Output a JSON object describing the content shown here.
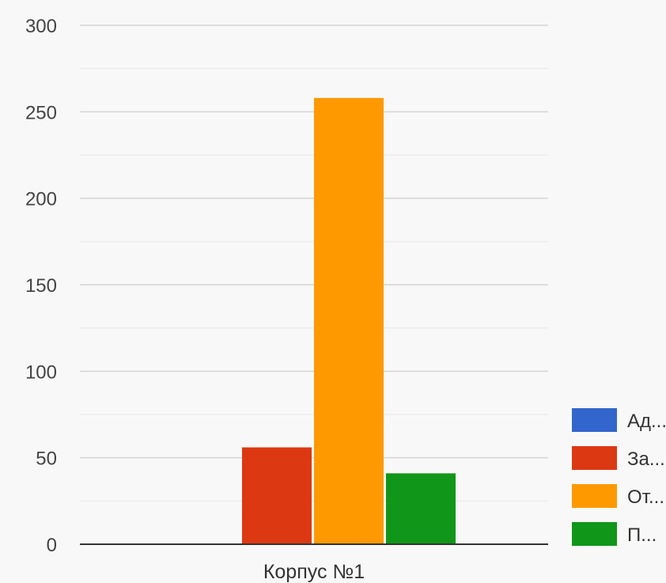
{
  "chart_data": {
    "type": "bar",
    "categories": [
      "Корпус №1"
    ],
    "series": [
      {
        "name": "Ад...",
        "color": "#3366cc",
        "values": [
          0
        ]
      },
      {
        "name": "За...",
        "color": "#dc3912",
        "values": [
          56
        ]
      },
      {
        "name": "От...",
        "color": "#ff9900",
        "values": [
          258
        ]
      },
      {
        "name": "П...",
        "color": "#109618",
        "values": [
          41
        ]
      }
    ],
    "ylim": [
      0,
      300
    ],
    "yticks": [
      0,
      50,
      100,
      150,
      200,
      250,
      300
    ],
    "grid": true,
    "legend": "right",
    "title": "",
    "xlabel": "",
    "ylabel": ""
  }
}
